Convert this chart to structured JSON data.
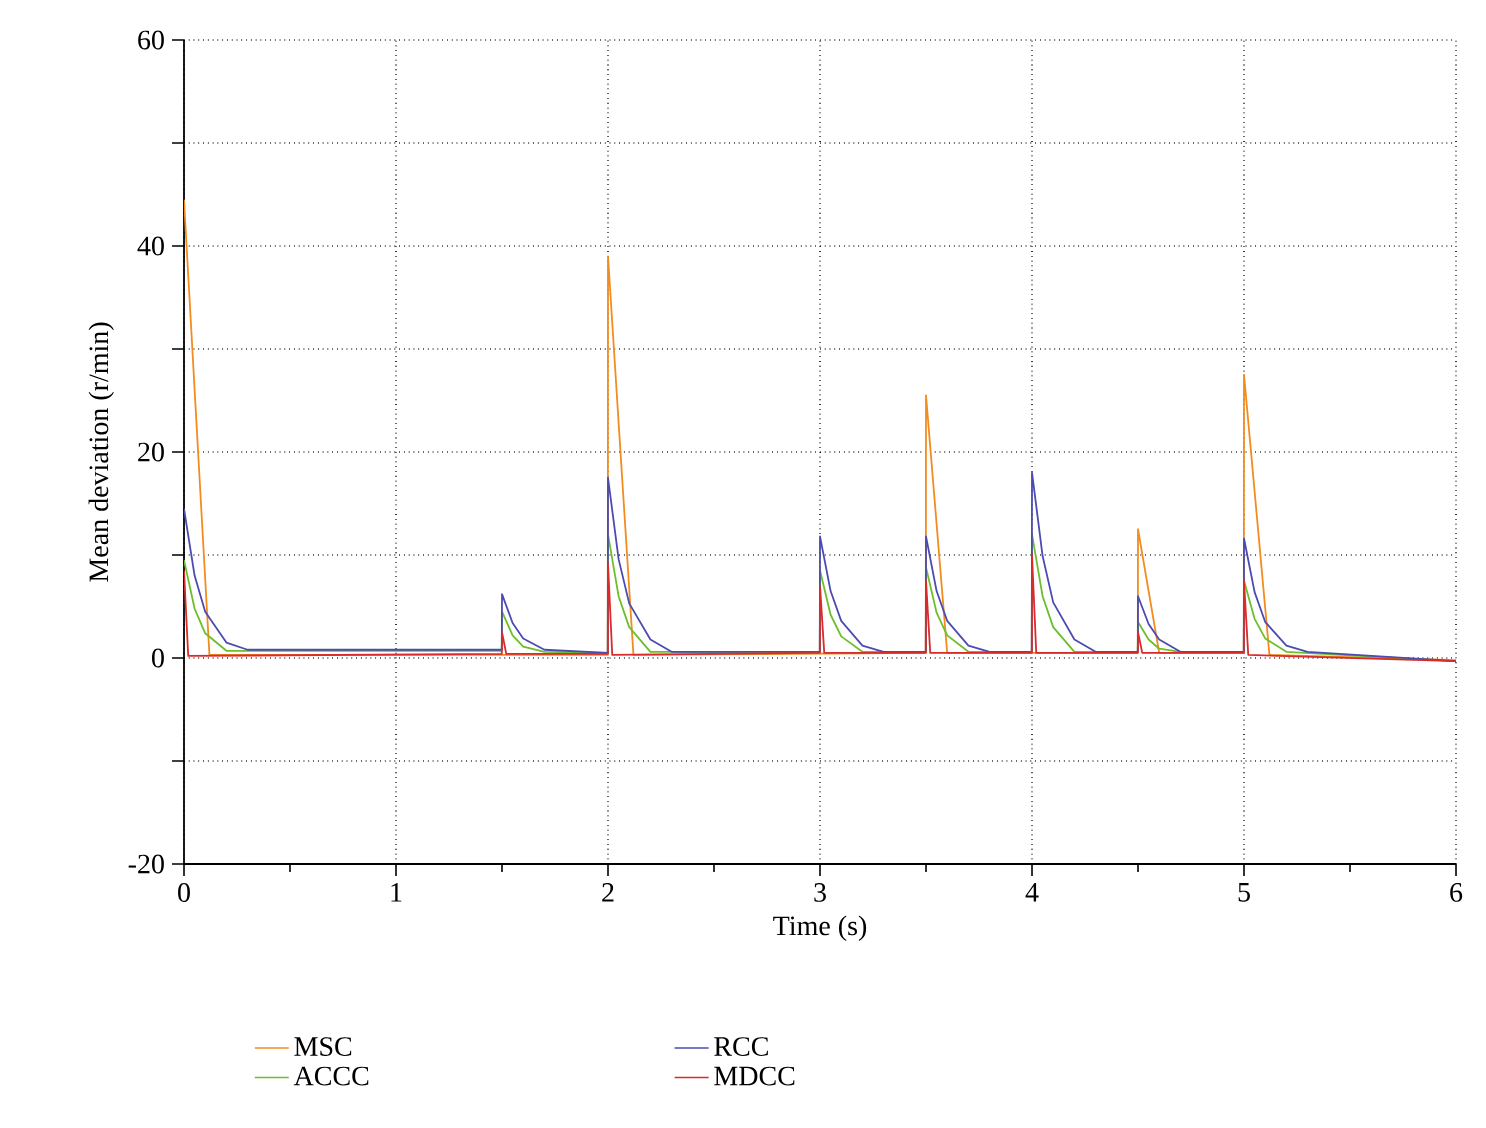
{
  "chart_data": {
    "type": "line",
    "xlabel": "Time (s)",
    "ylabel": "Mean deviation (r/min)",
    "xlim": [
      0,
      6
    ],
    "ylim": [
      -20,
      60
    ],
    "xticks": [
      0,
      1,
      2,
      3,
      4,
      5,
      6
    ],
    "yticks": [
      -20,
      {
        "value": -10,
        "label": null
      },
      0,
      {
        "value": 10,
        "label": null
      },
      20,
      {
        "value": 30,
        "label": null
      },
      40,
      {
        "value": 50,
        "label": null
      },
      60
    ],
    "grid": true,
    "legend": "bottom",
    "line_style": "solid",
    "marker": "none",
    "series": [
      {
        "name": "MSC",
        "color": "#f28c1e",
        "x": [
          0,
          0.12,
          1.999,
          2,
          2.12,
          3.499,
          3.5,
          3.6,
          4.499,
          4.5,
          4.6,
          4.999,
          5,
          5.12,
          6
        ],
        "values": [
          44.5,
          0.3,
          0.3,
          39,
          0.3,
          0.5,
          25.5,
          0.5,
          0.5,
          12.5,
          0.5,
          0.5,
          27.5,
          0.3,
          -0.2
        ]
      },
      {
        "name": "ACCC",
        "color": "#6cbf2a",
        "x": [
          0,
          0.05,
          0.1,
          0.2,
          1.499,
          1.5,
          1.55,
          1.6,
          1.7,
          1.999,
          2,
          2.05,
          2.1,
          2.2,
          2.999,
          3,
          3.05,
          3.1,
          3.2,
          3.499,
          3.5,
          3.55,
          3.6,
          3.7,
          3.999,
          4,
          4.05,
          4.1,
          4.2,
          4.499,
          4.5,
          4.55,
          4.6,
          4.7,
          4.999,
          5,
          5.05,
          5.1,
          5.2,
          6
        ],
        "values": [
          9.5,
          4.8,
          2.4,
          0.7,
          0.7,
          4.5,
          2.2,
          1.1,
          0.6,
          0.5,
          12,
          6,
          3,
          0.6,
          0.6,
          8.5,
          4.2,
          2.1,
          0.6,
          0.6,
          8.8,
          4.4,
          2.2,
          0.6,
          0.6,
          12,
          6,
          3,
          0.6,
          0.6,
          3.5,
          1.8,
          0.9,
          0.6,
          0.6,
          7.5,
          3.8,
          1.9,
          0.6,
          -0.3
        ]
      },
      {
        "name": "RCC",
        "color": "#4b4bb0",
        "x": [
          0,
          0.05,
          0.1,
          0.2,
          0.3,
          1.499,
          1.5,
          1.55,
          1.6,
          1.7,
          1.999,
          2,
          2.05,
          2.1,
          2.2,
          2.3,
          2.999,
          3,
          3.05,
          3.1,
          3.2,
          3.3,
          3.499,
          3.5,
          3.55,
          3.6,
          3.7,
          3.8,
          3.999,
          4,
          4.05,
          4.1,
          4.2,
          4.3,
          4.499,
          4.5,
          4.55,
          4.6,
          4.7,
          4.999,
          5,
          5.05,
          5.1,
          5.2,
          5.3,
          6
        ],
        "values": [
          14.5,
          8,
          4.5,
          1.5,
          0.8,
          0.8,
          6.2,
          3.4,
          1.9,
          0.8,
          0.5,
          17.5,
          9.6,
          5.3,
          1.8,
          0.6,
          0.6,
          11.8,
          6.5,
          3.6,
          1.2,
          0.6,
          0.6,
          11.8,
          6.5,
          3.6,
          1.2,
          0.6,
          0.6,
          18,
          9.9,
          5.4,
          1.8,
          0.6,
          0.6,
          6,
          3.3,
          1.8,
          0.6,
          0.6,
          11.6,
          6.4,
          3.5,
          1.2,
          0.6,
          -0.3
        ]
      },
      {
        "name": "MDCC",
        "color": "#d92b2b",
        "x": [
          0,
          0.02,
          1.499,
          1.5,
          1.52,
          1.999,
          2,
          2.02,
          2.999,
          3,
          3.02,
          3.499,
          3.5,
          3.52,
          3.999,
          4,
          4.02,
          4.499,
          4.5,
          4.52,
          4.999,
          5,
          5.02,
          6
        ],
        "values": [
          8.5,
          0.2,
          0.4,
          2.5,
          0.4,
          0.4,
          9.2,
          0.3,
          0.5,
          7,
          0.5,
          0.5,
          7.5,
          0.5,
          0.5,
          10,
          0.5,
          0.5,
          2.5,
          0.5,
          0.5,
          7.5,
          0.3,
          -0.3
        ]
      }
    ]
  }
}
